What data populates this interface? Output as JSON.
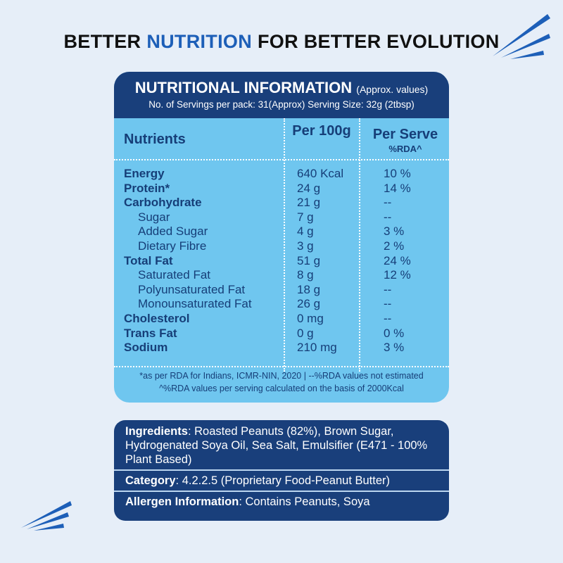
{
  "headline": {
    "parts": [
      "BETTER",
      "NUTRITION",
      "FOR BETTER EVOLUTION"
    ]
  },
  "nutrition": {
    "title": "NUTRITIONAL INFORMATION",
    "title_note": "(Approx. values)",
    "servings": "No. of Servings per pack: 31(Approx)  Serving Size: 32g (2tbsp)",
    "columns": {
      "nutrients": "Nutrients",
      "per_100g": "Per 100g",
      "per_serve": "Per Serve",
      "per_serve_note": "%RDA^"
    },
    "rows": [
      {
        "name": "Energy",
        "per_100g": "640 Kcal",
        "per_serve": "10 %",
        "indent": false
      },
      {
        "name": "Protein*",
        "per_100g": "24 g",
        "per_serve": "14 %",
        "indent": false
      },
      {
        "name": "Carbohydrate",
        "per_100g": "21 g",
        "per_serve": "--",
        "indent": false
      },
      {
        "name": "Sugar",
        "per_100g": "7 g",
        "per_serve": "--",
        "indent": true
      },
      {
        "name": "Added Sugar",
        "per_100g": "4 g",
        "per_serve": "3 %",
        "indent": true
      },
      {
        "name": "Dietary Fibre",
        "per_100g": "3 g",
        "per_serve": "2 %",
        "indent": true
      },
      {
        "name": "Total Fat",
        "per_100g": "51 g",
        "per_serve": "24 %",
        "indent": false
      },
      {
        "name": "Saturated Fat",
        "per_100g": "8 g",
        "per_serve": "12 %",
        "indent": true
      },
      {
        "name": "Polyunsaturated Fat",
        "per_100g": "18 g",
        "per_serve": "--",
        "indent": true
      },
      {
        "name": "Monounsaturated Fat",
        "per_100g": "26 g",
        "per_serve": "--",
        "indent": true
      },
      {
        "name": "Cholesterol",
        "per_100g": "0 mg",
        "per_serve": "--",
        "indent": false
      },
      {
        "name": "Trans Fat",
        "per_100g": "0 g",
        "per_serve": "0 %",
        "indent": false
      },
      {
        "name": "Sodium",
        "per_100g": "210 mg",
        "per_serve": "3 %",
        "indent": false
      }
    ],
    "footnotes": [
      "*as per RDA for Indians, ICMR-NIN, 2020  |  --%RDA values not estimated",
      "^%RDA values per serving calculated on the basis of 2000Kcal"
    ]
  },
  "info": [
    {
      "label": "Ingredients",
      "text": ": Roasted Peanuts (82%), Brown Sugar, Hydrogenated Soya Oil, Sea Salt, Emulsifier (E471 - 100% Plant Based)"
    },
    {
      "label": "Category",
      "text": ": 4.2.2.5 (Proprietary Food-Peanut Butter)"
    },
    {
      "label": "Allergen Information",
      "text": ": Contains Peanuts, Soya"
    }
  ]
}
